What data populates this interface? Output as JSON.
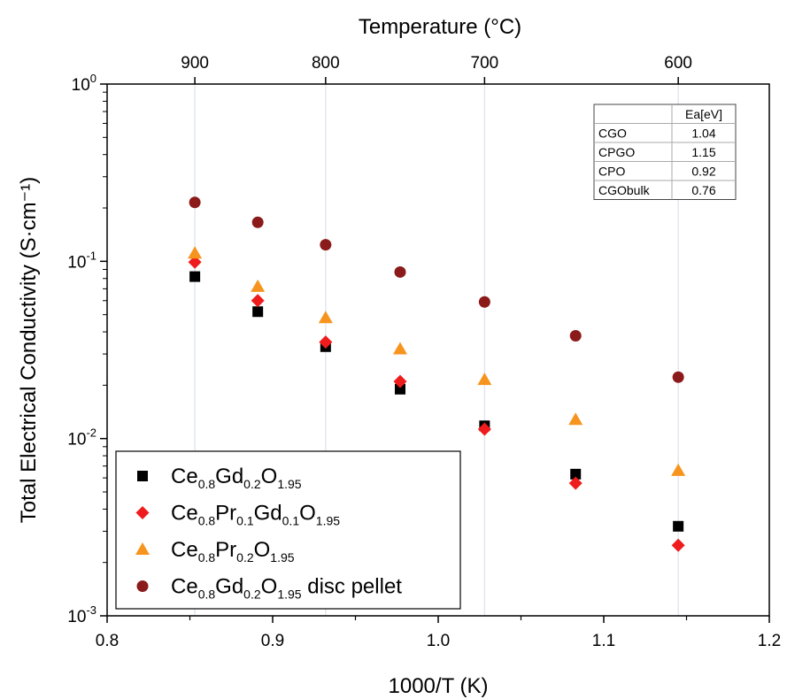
{
  "chart_data": {
    "type": "scatter",
    "xlabel": "1000/T (K)",
    "x2label": "Temperature (°C)",
    "ylabel": "Total Electrical Conductivity (S·cm⁻¹)",
    "xlim": [
      0.8,
      1.2
    ],
    "ylim": [
      0.001,
      1
    ],
    "yscale": "log",
    "xticks": [
      "0.8",
      "0.9",
      "1.0",
      "1.1",
      "1.2"
    ],
    "x2ticks": [
      "900",
      "800",
      "700",
      "600"
    ],
    "x2tick_positions": [
      0.853,
      0.932,
      1.028,
      1.145
    ],
    "yticks": [
      {
        "value": 1,
        "base": "10",
        "exp": "0"
      },
      {
        "value": 0.1,
        "base": "10",
        "exp": "-1"
      },
      {
        "value": 0.01,
        "base": "10",
        "exp": "-2"
      },
      {
        "value": 0.001,
        "base": "10",
        "exp": "-3"
      }
    ],
    "grid": "vertical",
    "legend_position": "bottom-left",
    "series": [
      {
        "label_parts": [
          [
            "Ce",
            ""
          ],
          [
            "0.8",
            "sub"
          ],
          [
            "Gd",
            ""
          ],
          [
            "0.2",
            "sub"
          ],
          [
            "O",
            ""
          ],
          [
            "1.95",
            "sub"
          ]
        ],
        "marker": "square",
        "color": "#000000",
        "x": [
          0.853,
          0.891,
          0.932,
          0.977,
          1.028,
          1.083,
          1.145
        ],
        "y": [
          0.082,
          0.052,
          0.033,
          0.019,
          0.0118,
          0.0063,
          0.0032
        ]
      },
      {
        "label_parts": [
          [
            "Ce",
            ""
          ],
          [
            "0.8",
            "sub"
          ],
          [
            "Pr",
            ""
          ],
          [
            "0.1",
            "sub"
          ],
          [
            "Gd",
            ""
          ],
          [
            "0.1",
            "sub"
          ],
          [
            "O",
            ""
          ],
          [
            "1.95",
            "sub"
          ]
        ],
        "marker": "diamond",
        "color": "#ee1c1c",
        "x": [
          0.853,
          0.891,
          0.932,
          0.977,
          1.028,
          1.083,
          1.145
        ],
        "y": [
          0.099,
          0.06,
          0.035,
          0.021,
          0.0113,
          0.0056,
          0.0025
        ]
      },
      {
        "label_parts": [
          [
            "Ce",
            ""
          ],
          [
            "0.8",
            "sub"
          ],
          [
            "Pr",
            ""
          ],
          [
            "0.2",
            "sub"
          ],
          [
            "O",
            ""
          ],
          [
            "1.95",
            "sub"
          ]
        ],
        "marker": "triangle",
        "color": "#f7941d",
        "x": [
          0.853,
          0.891,
          0.932,
          0.977,
          1.028,
          1.083,
          1.145
        ],
        "y": [
          0.111,
          0.072,
          0.048,
          0.032,
          0.0215,
          0.0128,
          0.0066
        ]
      },
      {
        "label_parts": [
          [
            "Ce",
            ""
          ],
          [
            "0.8",
            "sub"
          ],
          [
            "Gd",
            ""
          ],
          [
            "0.2",
            "sub"
          ],
          [
            "O",
            ""
          ],
          [
            "1.95",
            "sub"
          ],
          [
            " disc pellet",
            ""
          ]
        ],
        "marker": "circle",
        "color": "#8b1a1a",
        "x": [
          0.853,
          0.891,
          0.932,
          0.977,
          1.028,
          1.083,
          1.145
        ],
        "y": [
          0.215,
          0.166,
          0.124,
          0.087,
          0.059,
          0.038,
          0.0222
        ]
      }
    ],
    "table": {
      "header": [
        "",
        "Ea[eV]"
      ],
      "rows": [
        [
          "CGO",
          "1.04"
        ],
        [
          "CPGO",
          "1.15"
        ],
        [
          "CPO",
          "0.92"
        ],
        [
          "CGObulk",
          "0.76"
        ]
      ]
    }
  }
}
